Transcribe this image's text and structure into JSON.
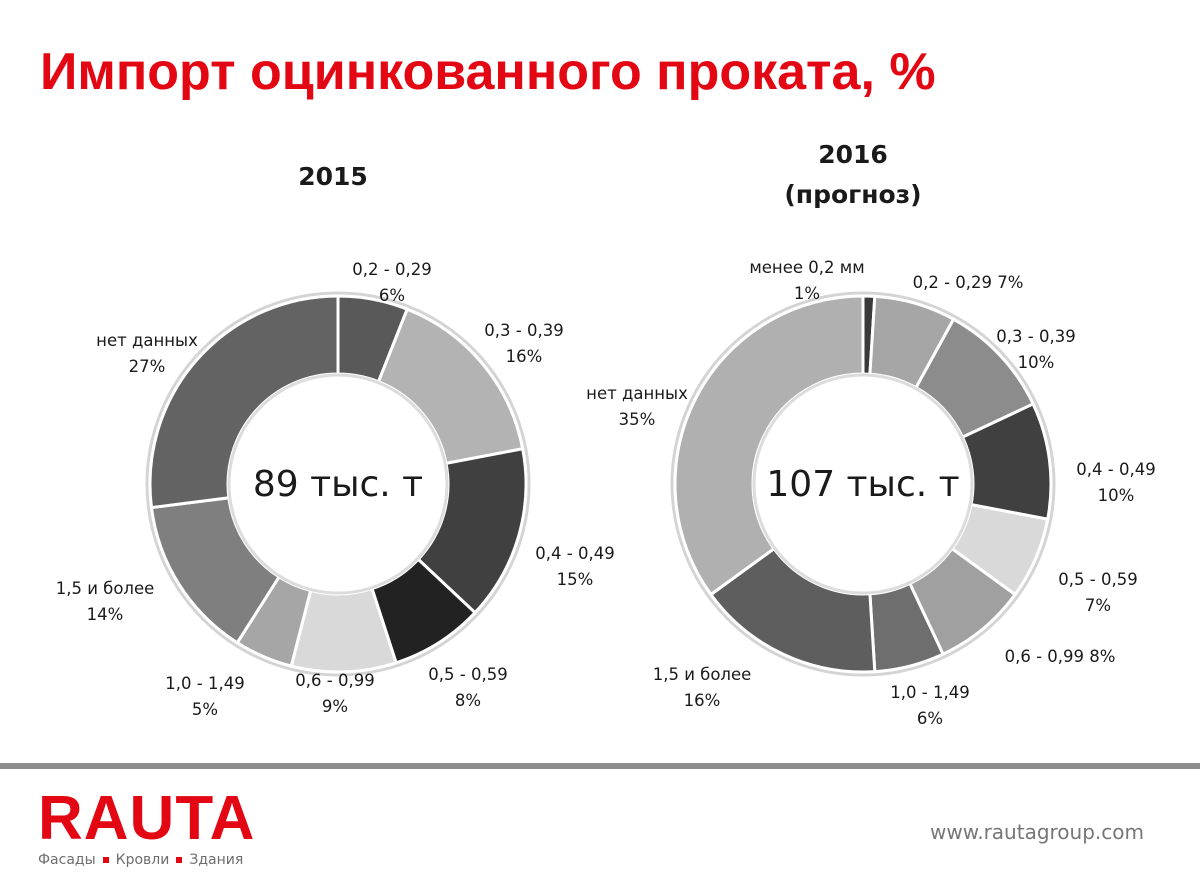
{
  "page": {
    "title": "Импорт оцинкованного проката, %",
    "logo_text": "RAUTA",
    "logo_tagline": [
      "Фасады",
      "Кровли",
      "Здания"
    ],
    "website": "www.rautagroup.com"
  },
  "chart_data": [
    {
      "type": "pie",
      "variant": "donut",
      "title": [
        "2015"
      ],
      "center_text": "89 тыс. т",
      "slices": [
        {
          "name": "0,2 - 0,29",
          "value": 6,
          "text": "6%",
          "color": "#595959"
        },
        {
          "name": "0,3 - 0,39",
          "value": 16,
          "text": "16%",
          "color": "#b3b3b3"
        },
        {
          "name": "0,4 - 0,49",
          "value": 15,
          "text": "15%",
          "color": "#404040"
        },
        {
          "name": "0,5 - 0,59",
          "value": 8,
          "text": "8%",
          "color": "#222222"
        },
        {
          "name": "0,6 - 0,99",
          "value": 9,
          "text": "9%",
          "color": "#d9d9d9"
        },
        {
          "name": "1,0 - 1,49",
          "value": 5,
          "text": "5%",
          "color": "#a6a6a6"
        },
        {
          "name": "1,5 и более",
          "value": 14,
          "text": "14%",
          "color": "#7f7f7f"
        },
        {
          "name": "нет данных",
          "value": 27,
          "text": "27%",
          "color": "#636363"
        }
      ]
    },
    {
      "type": "pie",
      "variant": "donut",
      "title": [
        "2016",
        "(прогноз)"
      ],
      "center_text": "107 тыс. т",
      "slices": [
        {
          "name": "менее 0,2 мм",
          "value": 1,
          "text": "1%",
          "color": "#3a3a3a"
        },
        {
          "name": "0,2 - 0,29",
          "value": 7,
          "text": "7%",
          "color": "#a6a6a6"
        },
        {
          "name": "0,3 - 0,39",
          "value": 10,
          "text": "10%",
          "color": "#8c8c8c"
        },
        {
          "name": "0,4 - 0,49",
          "value": 10,
          "text": "10%",
          "color": "#404040"
        },
        {
          "name": "0,5 - 0,59",
          "value": 7,
          "text": "7%",
          "color": "#d9d9d9"
        },
        {
          "name": "0,6 - 0,99",
          "value": 8,
          "text": "8%",
          "color": "#a0a0a0"
        },
        {
          "name": "1,0 - 1,49",
          "value": 6,
          "text": "6%",
          "color": "#6e6e6e"
        },
        {
          "name": "1,5 и более",
          "value": 16,
          "text": "16%",
          "color": "#5e5e5e"
        },
        {
          "name": "нет данных",
          "value": 35,
          "text": "35%",
          "color": "#b0b0b0"
        }
      ]
    }
  ]
}
